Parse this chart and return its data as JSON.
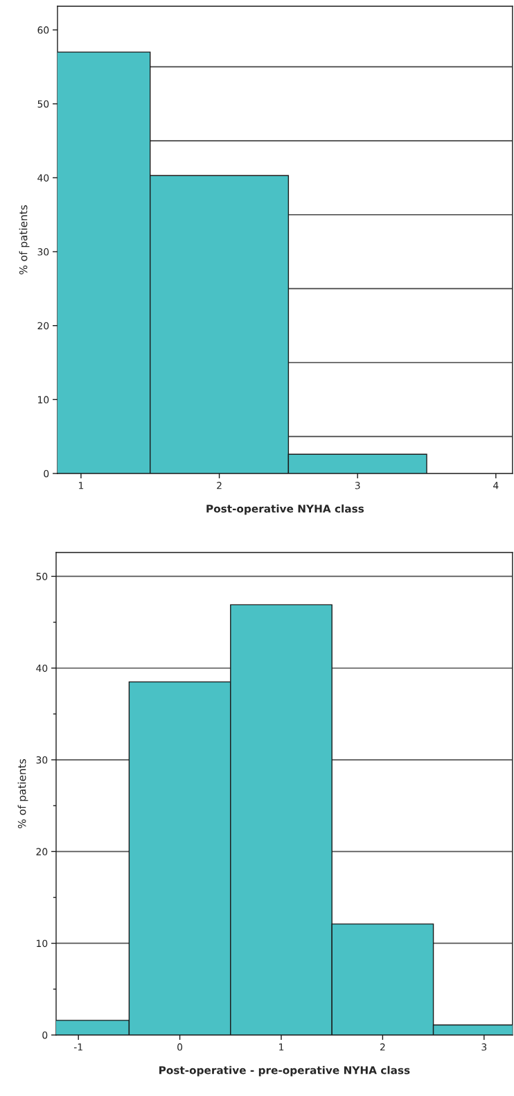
{
  "chart_data": [
    {
      "type": "histogram",
      "xlabel": "Post-operative NYHA class",
      "ylabel": "% of patients",
      "bins": [
        0.5,
        1.5,
        2.5,
        3.5
      ],
      "values": [
        57.0,
        40.3,
        2.6
      ],
      "color": "#4ac1c5",
      "xlim": [
        0.83,
        4.12
      ],
      "xticks": [
        1,
        2,
        3,
        4
      ],
      "ylim": [
        0,
        63.2
      ],
      "yticks": [
        0,
        10,
        20,
        30,
        40,
        50,
        60
      ],
      "grid": false,
      "ref_lines": [
        {
          "axis": "y",
          "value": 5,
          "color": "#444444"
        },
        {
          "axis": "y",
          "value": 15,
          "color": "#444444"
        },
        {
          "axis": "y",
          "value": 25,
          "color": "#444444"
        },
        {
          "axis": "y",
          "value": 35,
          "color": "#444444"
        },
        {
          "axis": "y",
          "value": 45,
          "color": "#444444"
        },
        {
          "axis": "y",
          "value": 55,
          "color": "#444444"
        }
      ]
    },
    {
      "type": "histogram",
      "xlabel": "Post-operative - pre-operative NYHA class",
      "ylabel": "% of patients",
      "bins": [
        -1.5,
        -0.5,
        0.5,
        1.5,
        2.5,
        3.5
      ],
      "values": [
        1.6,
        38.5,
        46.9,
        12.1,
        1.1
      ],
      "color": "#4ac1c5",
      "xlim": [
        -1.22,
        3.28
      ],
      "xticks": [
        -1,
        0,
        1,
        2,
        3
      ],
      "ylim": [
        0,
        52.6
      ],
      "yticks": [
        0,
        {
          "value": 5,
          "label": null
        },
        10,
        {
          "value": 15,
          "label": null
        },
        20,
        {
          "value": 25,
          "label": null
        },
        30,
        {
          "value": 35,
          "label": null
        },
        40,
        {
          "value": 45,
          "label": null
        },
        50
      ],
      "grid": "y"
    }
  ]
}
